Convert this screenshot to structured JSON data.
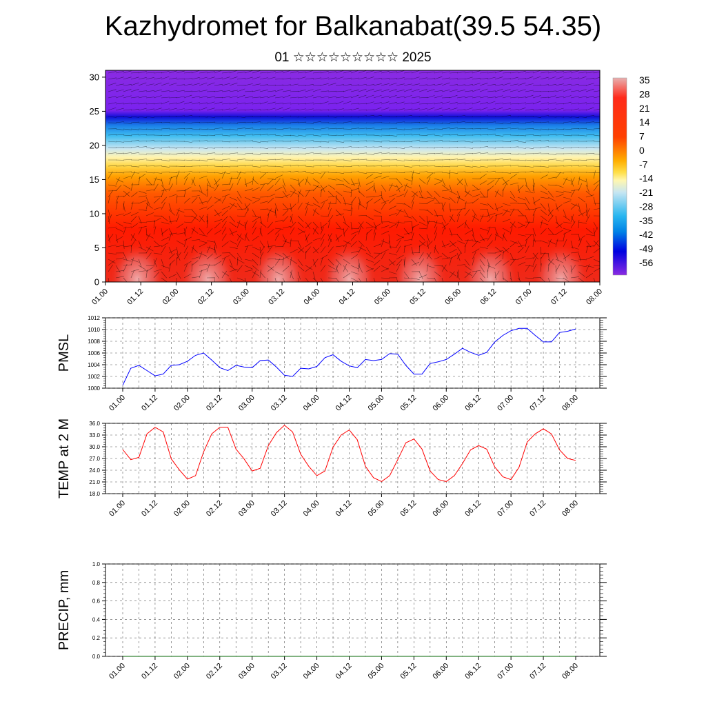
{
  "title": "Kazhydromet for Balkanabat(39.5 54.35)",
  "subtitle": "01 ☆☆☆☆☆☆☆☆☆ 2025",
  "time_labels": [
    "01.00",
    "01.12",
    "02.00",
    "02.12",
    "03.00",
    "03.12",
    "04.00",
    "04.12",
    "05.00",
    "05.12",
    "06.00",
    "06.12",
    "07.00",
    "07.12",
    "08.00"
  ],
  "colors": {
    "pmsl_line": "#0000ff",
    "temp_line": "#ff0000",
    "precip_line": "#006400",
    "grid": "#555555"
  },
  "chart_data": [
    {
      "type": "heatmap",
      "name": "temperature-wind cross-section",
      "ylim": [
        0,
        31
      ],
      "yticks": [
        0,
        5,
        10,
        15,
        20,
        25,
        30
      ],
      "colorbar_labels": [
        "35",
        "28",
        "21",
        "14",
        "7",
        "0",
        "-7",
        "-14",
        "-21",
        "-28",
        "-35",
        "-42",
        "-49",
        "-56"
      ],
      "colorbar_stops": [
        "#e8b0b0",
        "#ff2a1a",
        "#ff2a00",
        "#ff6a00",
        "#ffae00",
        "#ffe04a",
        "#fff7b0",
        "#c7e6f2",
        "#29b6f0",
        "#0082e6",
        "#0000e0",
        "#6a1ae8",
        "#8a2be2"
      ]
    },
    {
      "type": "line",
      "ylabel": "PMSL",
      "ylim": [
        1000,
        1012
      ],
      "yticks": [
        "1000",
        "1002",
        "1004",
        "1006",
        "1008",
        "1010",
        "1012"
      ],
      "x": [
        0,
        3,
        6,
        9,
        12,
        15,
        18,
        21,
        24,
        27,
        30,
        33,
        36,
        39,
        42,
        45,
        48,
        51,
        54,
        57,
        60,
        63,
        66,
        69,
        72,
        75,
        78,
        81,
        84,
        87,
        90,
        93,
        96,
        99,
        102,
        105,
        108,
        111,
        114,
        117,
        120,
        123,
        126,
        129,
        132,
        135,
        138,
        141,
        144,
        147,
        150,
        153,
        156,
        159,
        162,
        165,
        168
      ],
      "values": [
        1000.5,
        1003.4,
        1003.9,
        1003.0,
        1002.1,
        1002.4,
        1003.9,
        1004.0,
        1004.6,
        1005.6,
        1006.0,
        1004.8,
        1003.5,
        1003.0,
        1003.9,
        1003.6,
        1003.5,
        1004.7,
        1004.8,
        1003.6,
        1002.2,
        1002.0,
        1003.4,
        1003.3,
        1003.7,
        1005.2,
        1005.7,
        1004.6,
        1003.8,
        1003.5,
        1004.9,
        1004.7,
        1004.9,
        1005.9,
        1005.8,
        1003.9,
        1002.4,
        1002.4,
        1004.2,
        1004.5,
        1004.9,
        1005.8,
        1006.8,
        1006.1,
        1005.6,
        1006.1,
        1007.9,
        1009.0,
        1009.8,
        1010.2,
        1010.2,
        1009.0,
        1007.9,
        1007.9,
        1009.5,
        1009.7,
        1010.1
      ]
    },
    {
      "type": "line",
      "ylabel": "TEMP at 2 M",
      "ylim": [
        18,
        36
      ],
      "yticks": [
        "18.0",
        "21.0",
        "24.0",
        "27.0",
        "30.0",
        "33.0",
        "36.0"
      ],
      "x": [
        0,
        3,
        6,
        9,
        12,
        15,
        18,
        21,
        24,
        27,
        30,
        33,
        36,
        39,
        42,
        45,
        48,
        51,
        54,
        57,
        60,
        63,
        66,
        69,
        72,
        75,
        78,
        81,
        84,
        87,
        90,
        93,
        96,
        99,
        102,
        105,
        108,
        111,
        114,
        117,
        120,
        123,
        126,
        129,
        132,
        135,
        138,
        141,
        144,
        147,
        150,
        153,
        156,
        159,
        162,
        165,
        168
      ],
      "values": [
        29.3,
        26.7,
        27.3,
        33.3,
        35.0,
        33.8,
        26.9,
        24.1,
        21.7,
        22.6,
        28.7,
        33.3,
        35.0,
        35.0,
        29.4,
        26.9,
        23.8,
        24.5,
        30.3,
        33.6,
        35.5,
        33.8,
        28.1,
        25.0,
        22.6,
        23.8,
        29.9,
        33.0,
        34.3,
        31.8,
        25.0,
        22.1,
        21.1,
        22.6,
        26.7,
        31.0,
        32.0,
        29.4,
        23.8,
        21.6,
        21.1,
        22.6,
        25.7,
        29.2,
        30.3,
        29.4,
        24.8,
        22.3,
        21.6,
        24.8,
        31.2,
        33.3,
        34.6,
        33.3,
        29.2,
        27.0,
        26.5
      ]
    },
    {
      "type": "line",
      "ylabel": "PRECIP, mm",
      "ylim": [
        0,
        1
      ],
      "yticks": [
        "0.0",
        "0.2",
        "0.4",
        "0.6",
        "0.8",
        "1.0"
      ],
      "x": [
        0,
        168
      ],
      "values": [
        0,
        0
      ]
    }
  ]
}
